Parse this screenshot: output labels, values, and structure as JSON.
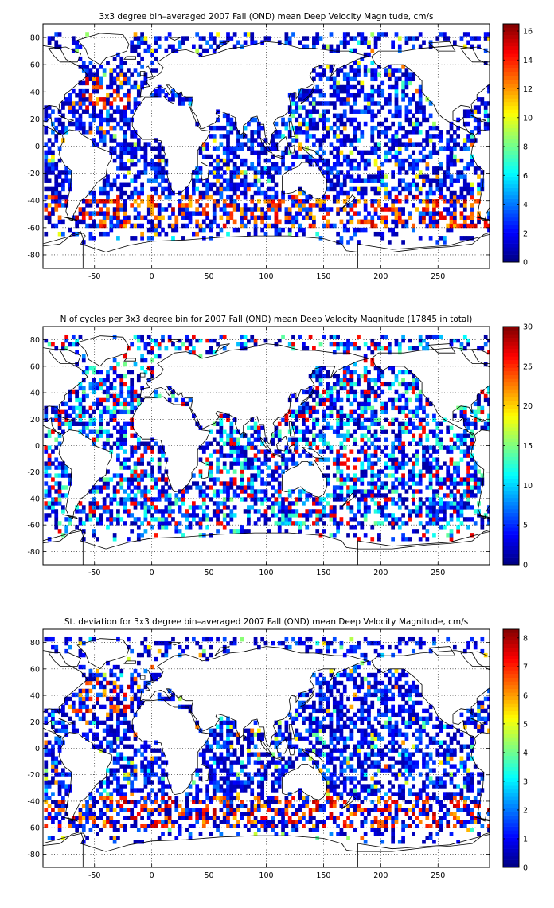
{
  "chart_data": [
    {
      "type": "heatmap",
      "title": "3x3 degree bin–averaged 2007 Fall (OND) mean Deep Velocity Magnitude, cm/s",
      "xlabel": "",
      "ylabel": "",
      "xlim": [
        -95,
        295
      ],
      "ylim": [
        -90,
        90
      ],
      "xticks": [
        -50,
        0,
        50,
        100,
        150,
        200,
        250
      ],
      "yticks": [
        -80,
        -60,
        -40,
        -20,
        0,
        20,
        40,
        60,
        80
      ],
      "grid": true,
      "grid_style": "dotted",
      "bin_size_deg": 3,
      "colormap": "jet",
      "colorbar": {
        "range": [
          0,
          16.5
        ],
        "ticks": [
          0,
          2,
          4,
          6,
          8,
          10,
          12,
          14,
          16
        ]
      }
    },
    {
      "type": "heatmap",
      "title": "N of cycles per 3x3 degree bin for 2007 Fall (OND) mean Deep Velocity Magnitude (17845 in total)",
      "xlabel": "",
      "ylabel": "",
      "xlim": [
        -95,
        295
      ],
      "ylim": [
        -90,
        90
      ],
      "xticks": [
        -50,
        0,
        50,
        100,
        150,
        200,
        250
      ],
      "yticks": [
        -80,
        -60,
        -40,
        -20,
        0,
        20,
        40,
        60,
        80
      ],
      "grid": true,
      "grid_style": "dotted",
      "bin_size_deg": 3,
      "colormap": "jet",
      "colorbar": {
        "range": [
          0,
          30
        ],
        "ticks": [
          0,
          5,
          10,
          15,
          20,
          25,
          30
        ]
      }
    },
    {
      "type": "heatmap",
      "title": "St. deviation for 3x3 degree bin–averaged 2007 Fall (OND) mean Deep Velocity Magnitude, cm/s",
      "xlabel": "",
      "ylabel": "",
      "xlim": [
        -95,
        295
      ],
      "ylim": [
        -90,
        90
      ],
      "xticks": [
        -50,
        0,
        50,
        100,
        150,
        200,
        250
      ],
      "yticks": [
        -80,
        -60,
        -40,
        -20,
        0,
        20,
        40,
        60,
        80
      ],
      "grid": true,
      "grid_style": "dotted",
      "bin_size_deg": 3,
      "colormap": "jet",
      "colorbar": {
        "range": [
          0,
          8.3
        ],
        "ticks": [
          0,
          1,
          2,
          3,
          4,
          5,
          6,
          7,
          8
        ]
      }
    }
  ]
}
